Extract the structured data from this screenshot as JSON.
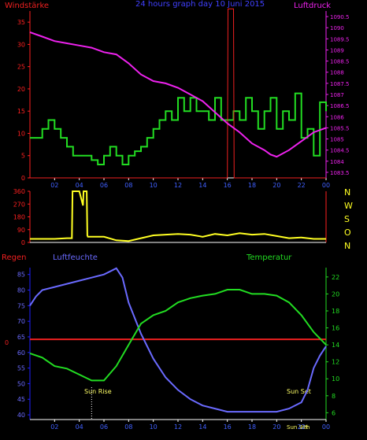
{
  "chart_data": [
    {
      "type": "line",
      "title": "24 hours graph day  10 Juni 2015",
      "left_label": "Windstärke",
      "right_label": "Luftdruck",
      "x_ticks": [
        "02",
        "04",
        "06",
        "08",
        "10",
        "12",
        "14",
        "16",
        "18",
        "20",
        "22",
        "00"
      ],
      "y_left_ticks": [
        0,
        5,
        10,
        15,
        20,
        25,
        30,
        35
      ],
      "y_right_ticks": [
        1083.5,
        1084,
        1084.5,
        1085,
        1085.5,
        1086,
        1086.5,
        1087,
        1087.5,
        1088,
        1088.5,
        1089,
        1089.5,
        1090,
        1090.5
      ],
      "ylim_left": [
        0,
        37.5
      ],
      "ylim_right": [
        1083.25,
        1090.75
      ],
      "grid": false,
      "colors": {
        "axis": "#ff2020",
        "wind": "#22dd22",
        "gust": "#ee2020",
        "pressure": "#ee22ee",
        "title": "#4040ff"
      },
      "series": [
        {
          "axis": "left",
          "color": "#22dd22",
          "x": [
            0,
            1,
            1.5,
            2,
            2.5,
            3,
            3.5,
            4,
            4.5,
            5,
            5.5,
            6,
            6.5,
            7,
            7.5,
            8,
            8.5,
            9,
            9.5,
            10,
            10.5,
            11,
            11.5,
            12,
            12.5,
            13,
            13.5,
            14,
            14.5,
            15,
            15.5,
            16,
            16.5,
            17,
            17.5,
            18,
            18.5,
            19,
            19.5,
            20,
            20.5,
            21,
            21.5,
            22,
            22.5,
            23,
            23.5,
            24
          ],
          "y": [
            9,
            11,
            13,
            11,
            9,
            7,
            5,
            5,
            5,
            4,
            3,
            5,
            7,
            5,
            3,
            5,
            6,
            7,
            9,
            11,
            13,
            15,
            13,
            18,
            15,
            18,
            15,
            15,
            13,
            18,
            13,
            13,
            15,
            13,
            18,
            15,
            11,
            15,
            18,
            11,
            15,
            13,
            19,
            9,
            11,
            5,
            17,
            15
          ]
        },
        {
          "axis": "left",
          "color": "#ee2020",
          "x": [
            0,
            16,
            16.05,
            16.5,
            16.55,
            24
          ],
          "y": [
            0,
            0,
            38,
            38,
            0,
            0
          ]
        },
        {
          "axis": "right",
          "color": "#ee22ee",
          "x": [
            0,
            1,
            2,
            3,
            4,
            5,
            6,
            7,
            8,
            9,
            10,
            11,
            12,
            13,
            14,
            15,
            16,
            17,
            18,
            19,
            19.5,
            20,
            21,
            22,
            23,
            24
          ],
          "y": [
            1089.8,
            1089.6,
            1089.4,
            1089.3,
            1089.2,
            1089.1,
            1088.9,
            1088.8,
            1088.4,
            1087.9,
            1087.6,
            1087.5,
            1087.3,
            1087,
            1086.7,
            1086.2,
            1085.7,
            1085.3,
            1084.8,
            1084.5,
            1084.3,
            1084.2,
            1084.5,
            1084.9,
            1085.3,
            1085.5
          ]
        }
      ]
    },
    {
      "type": "line",
      "right_labels": [
        "N",
        "W",
        "S",
        "O",
        "N"
      ],
      "y_ticks": [
        0,
        90,
        180,
        270,
        360
      ],
      "ylim": [
        0,
        360
      ],
      "grid": false,
      "colors": {
        "axis": "#ff2020",
        "direction": "#ffff22",
        "letters": "#ffff22"
      },
      "series": [
        {
          "name": "",
          "color": "#ffff22",
          "x": [
            0,
            1,
            2,
            3,
            3.4,
            3.45,
            4,
            4.3,
            4.35,
            4.6,
            4.65,
            4.7,
            5,
            6,
            7,
            8,
            9,
            10,
            11,
            12,
            13,
            14,
            15,
            16,
            17,
            18,
            19,
            20,
            21,
            22,
            23,
            24
          ],
          "y": [
            25,
            25,
            25,
            30,
            30,
            360,
            360,
            260,
            360,
            360,
            50,
            40,
            40,
            40,
            15,
            10,
            30,
            50,
            55,
            60,
            55,
            40,
            60,
            50,
            65,
            55,
            60,
            45,
            30,
            35,
            25,
            25
          ]
        }
      ]
    },
    {
      "type": "line",
      "left_label": "Regen",
      "middle_label": "Luftfeuchte",
      "right_label": "Temperatur",
      "x_ticks": [
        "02",
        "04",
        "06",
        "08",
        "10",
        "12",
        "14",
        "16",
        "18",
        "20",
        "22",
        "00"
      ],
      "y_left_ticks": [
        40,
        45,
        50,
        55,
        60,
        65,
        70,
        75,
        80,
        85
      ],
      "y_right_ticks": [
        6,
        8,
        10,
        12,
        14,
        16,
        18,
        20,
        22
      ],
      "rain_label": "0",
      "ylim_left": [
        38.5,
        87.2
      ],
      "ylim_right": [
        5.2,
        23.1
      ],
      "annotations": [
        "Sun Rise",
        "Sun Set",
        "Sun Set",
        "22h"
      ],
      "grid": false,
      "colors": {
        "axis": "#2020ff",
        "humidity": "#6a6aff",
        "temperature": "#22dd22",
        "rain": "#ee2020",
        "sun": "#ffff66",
        "regen": "#ee2020",
        "temp_label": "#22dd22",
        "humidity_label": "#6a6aff"
      },
      "series": [
        {
          "axis": "left",
          "color": "#6a6aff",
          "x": [
            0,
            0.5,
            1,
            2,
            3,
            4,
            5,
            6,
            6.5,
            7,
            7.5,
            8,
            9,
            10,
            11,
            12,
            13,
            14,
            15,
            16,
            17,
            18,
            19,
            20,
            21,
            22,
            22.5,
            23,
            23.5,
            24
          ],
          "y": [
            75,
            78,
            80,
            81,
            82,
            83,
            84,
            85,
            86,
            87,
            84,
            76,
            66,
            58,
            52,
            48,
            45,
            43,
            42,
            41,
            41,
            41,
            41,
            41,
            42,
            44,
            48,
            55,
            59,
            62
          ]
        },
        {
          "axis": "right",
          "color": "#22dd22",
          "x": [
            0,
            1,
            2,
            3,
            4,
            5,
            6,
            7,
            8,
            9,
            10,
            11,
            12,
            13,
            14,
            15,
            16,
            17,
            18,
            19,
            20,
            21,
            22,
            23,
            24
          ],
          "y": [
            13,
            12.5,
            11.5,
            11.2,
            10.5,
            9.8,
            9.8,
            11.5,
            14,
            16.5,
            17.5,
            18,
            19,
            19.5,
            19.8,
            20,
            20.5,
            20.5,
            20,
            20,
            19.8,
            19,
            17.5,
            15.5,
            14
          ]
        },
        {
          "axis": "left",
          "color": "#ee2020",
          "x": [
            0,
            24
          ],
          "y": [
            64.2,
            64.2
          ]
        }
      ]
    }
  ]
}
